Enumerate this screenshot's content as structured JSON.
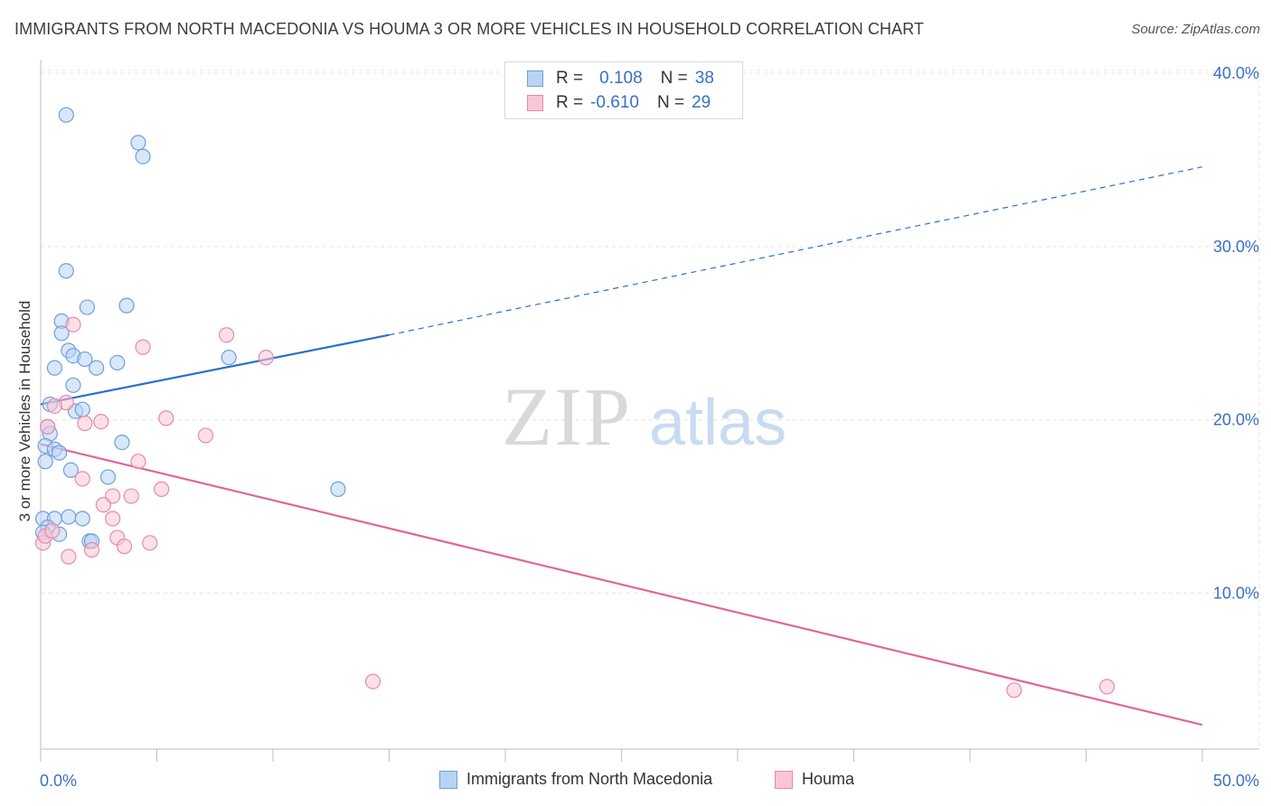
{
  "header": {
    "title": "IMMIGRANTS FROM NORTH MACEDONIA VS HOUMA 3 OR MORE VEHICLES IN HOUSEHOLD CORRELATION CHART",
    "source": "Source: ZipAtlas.com"
  },
  "watermark": {
    "zip": "ZIP",
    "atlas": "atlas"
  },
  "legend_top": {
    "rows": [
      {
        "r_label": "R =",
        "r_value": "0.108",
        "n_label": "N =",
        "n_value": "38"
      },
      {
        "r_label": "R =",
        "r_value": "-0.610",
        "n_label": "N =",
        "n_value": "29"
      }
    ]
  },
  "legend_bottom": {
    "items": [
      {
        "label": "Immigrants from North Macedonia"
      },
      {
        "label": "Houma"
      }
    ]
  },
  "colors": {
    "blue_fill": "#b9d3f5",
    "blue_stroke": "#6f9ede",
    "blue_line": "#2a6fcf",
    "pink_fill": "#f9c6d6",
    "pink_stroke": "#e88aa8",
    "pink_line": "#e0659a",
    "tick_text": "#3a6fc4",
    "grid": "#e4e4e4"
  },
  "chart_data": {
    "type": "scatter",
    "title": "IMMIGRANTS FROM NORTH MACEDONIA VS HOUMA 3 OR MORE VEHICLES IN HOUSEHOLD CORRELATION CHART",
    "xlabel": "",
    "ylabel": "3 or more Vehicles in Household",
    "xlim": [
      0,
      50
    ],
    "ylim": [
      1,
      41
    ],
    "x_tick_labels": [
      "0.0%",
      "50.0%"
    ],
    "y_ticks": [
      10,
      20,
      30,
      40
    ],
    "y_tick_labels": [
      "10.0%",
      "20.0%",
      "30.0%",
      "40.0%"
    ],
    "series": [
      {
        "name": "Immigrants from North Macedonia",
        "color": "blue",
        "points": [
          [
            1.1,
            37.6
          ],
          [
            4.2,
            36.0
          ],
          [
            4.4,
            35.2
          ],
          [
            1.1,
            28.6
          ],
          [
            2.0,
            26.5
          ],
          [
            3.7,
            26.6
          ],
          [
            0.9,
            25.7
          ],
          [
            0.9,
            25.0
          ],
          [
            1.2,
            24.0
          ],
          [
            1.4,
            23.7
          ],
          [
            1.9,
            23.5
          ],
          [
            3.3,
            23.3
          ],
          [
            8.1,
            23.6
          ],
          [
            0.6,
            23.0
          ],
          [
            2.4,
            23.0
          ],
          [
            1.4,
            22.0
          ],
          [
            0.4,
            20.9
          ],
          [
            1.5,
            20.5
          ],
          [
            1.8,
            20.6
          ],
          [
            0.3,
            19.6
          ],
          [
            0.4,
            19.2
          ],
          [
            0.2,
            18.5
          ],
          [
            0.6,
            18.3
          ],
          [
            0.8,
            18.1
          ],
          [
            3.5,
            18.7
          ],
          [
            0.2,
            17.6
          ],
          [
            1.3,
            17.1
          ],
          [
            2.9,
            16.7
          ],
          [
            12.8,
            16.0
          ],
          [
            0.1,
            14.3
          ],
          [
            0.6,
            14.3
          ],
          [
            1.2,
            14.4
          ],
          [
            1.8,
            14.3
          ],
          [
            0.3,
            13.8
          ],
          [
            0.8,
            13.4
          ],
          [
            2.1,
            13.0
          ],
          [
            2.2,
            13.0
          ],
          [
            0.1,
            13.5
          ]
        ],
        "trend": {
          "x0": 0,
          "y0": 20.9,
          "x_solid_end": 15,
          "y_solid_end": 24.9,
          "x1": 50,
          "y1": 34.6
        }
      },
      {
        "name": "Houma",
        "color": "pink",
        "points": [
          [
            1.4,
            25.5
          ],
          [
            4.4,
            24.2
          ],
          [
            8.0,
            24.9
          ],
          [
            9.7,
            23.6
          ],
          [
            1.1,
            21.0
          ],
          [
            0.6,
            20.8
          ],
          [
            5.4,
            20.1
          ],
          [
            1.9,
            19.8
          ],
          [
            2.6,
            19.9
          ],
          [
            0.3,
            19.6
          ],
          [
            7.1,
            19.1
          ],
          [
            4.2,
            17.6
          ],
          [
            1.8,
            16.6
          ],
          [
            5.2,
            16.0
          ],
          [
            3.1,
            15.6
          ],
          [
            3.9,
            15.6
          ],
          [
            2.7,
            15.1
          ],
          [
            3.1,
            14.3
          ],
          [
            3.3,
            13.2
          ],
          [
            4.7,
            12.9
          ],
          [
            0.1,
            12.9
          ],
          [
            2.2,
            12.5
          ],
          [
            3.6,
            12.7
          ],
          [
            1.2,
            12.1
          ],
          [
            14.3,
            4.9
          ],
          [
            41.9,
            4.4
          ],
          [
            45.9,
            4.6
          ],
          [
            0.2,
            13.3
          ],
          [
            0.5,
            13.6
          ]
        ],
        "trend": {
          "x0": 0,
          "y0": 18.6,
          "x1": 50,
          "y1": 2.4
        }
      }
    ]
  }
}
